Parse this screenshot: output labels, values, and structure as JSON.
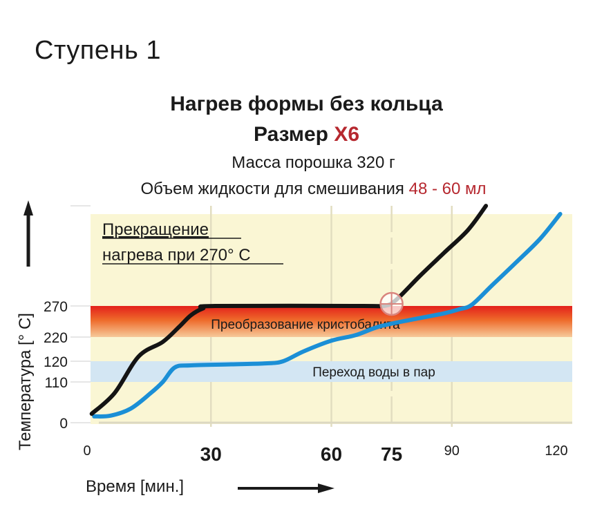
{
  "step_title": "Ступень 1",
  "title_line1": "Нагрев формы без кольца",
  "title_line2_prefix": "Размер ",
  "title_line2_highlight": "X6",
  "powder_mass": "Масса порошка 320 г",
  "liquid_prefix": "Объем жидкости для смешивания ",
  "liquid_highlight": "48 - 60 мл",
  "colors": {
    "highlight_red": "#b6282f",
    "plot_bg": "#faf6d4",
    "band_hot_top": "#e3201b",
    "band_hot_bottom": "#f6c99a",
    "band_water": "#d3e6f3",
    "curve_black": "#141414",
    "curve_blue": "#1b8fd6",
    "grid": "#e2ddc0"
  },
  "chart_data": {
    "type": "line",
    "title": "Нагрев формы без кольца",
    "xlabel": "Время [мин.]",
    "ylabel": "Температура [° C]",
    "xlim": [
      0,
      120
    ],
    "ylim": [
      0,
      418
    ],
    "grid": true,
    "x_ticks": [
      {
        "value": 0,
        "label": "0",
        "bold": false
      },
      {
        "value": 30,
        "label": "30",
        "bold": true
      },
      {
        "value": 60,
        "label": "60",
        "bold": true
      },
      {
        "value": 75,
        "label": "75",
        "bold": true
      },
      {
        "value": 90,
        "label": "90",
        "bold": false
      },
      {
        "value": 120,
        "label": "120",
        "bold": false
      }
    ],
    "y_ticks": [
      {
        "value": 0,
        "label": "0"
      },
      {
        "value": 110,
        "label": "110"
      },
      {
        "value": 120,
        "label": "120"
      },
      {
        "value": 220,
        "label": "220"
      },
      {
        "value": 270,
        "label": "270"
      }
    ],
    "bands": [
      {
        "name": "cristobalite",
        "from": 220,
        "to": 270,
        "label": "Преобразование кристобалита"
      },
      {
        "name": "water-vapor",
        "from": 110,
        "to": 120,
        "label": "Переход воды в пар"
      }
    ],
    "annotation": {
      "line1": "Прекращение",
      "line2": "нагрева при 270° C"
    },
    "marker": {
      "x": 75,
      "y": 270
    },
    "series": [
      {
        "name": "black",
        "points": [
          [
            0.3,
            24
          ],
          [
            6,
            80
          ],
          [
            12,
            140
          ],
          [
            18,
            200
          ],
          [
            22,
            236
          ],
          [
            25,
            255
          ],
          [
            28,
            266
          ],
          [
            31,
            270
          ],
          [
            68,
            270
          ],
          [
            73,
            270
          ],
          [
            76,
            279
          ],
          [
            82,
            318
          ],
          [
            88,
            355
          ],
          [
            94,
            392
          ],
          [
            98.5,
            431
          ]
        ]
      },
      {
        "name": "blue",
        "points": [
          [
            0.9,
            17
          ],
          [
            5,
            19
          ],
          [
            10,
            38
          ],
          [
            15,
            80
          ],
          [
            18,
            110
          ],
          [
            21,
            117
          ],
          [
            25,
            118
          ],
          [
            35,
            118.5
          ],
          [
            44,
            119
          ],
          [
            48,
            120
          ],
          [
            53,
            160
          ],
          [
            60,
            205
          ],
          [
            66,
            223
          ],
          [
            72,
            237
          ],
          [
            80,
            248
          ],
          [
            88,
            258
          ],
          [
            92,
            265
          ],
          [
            95,
            272
          ],
          [
            100,
            303
          ],
          [
            106,
            340
          ],
          [
            112,
            378
          ],
          [
            117,
            418
          ]
        ]
      }
    ]
  }
}
